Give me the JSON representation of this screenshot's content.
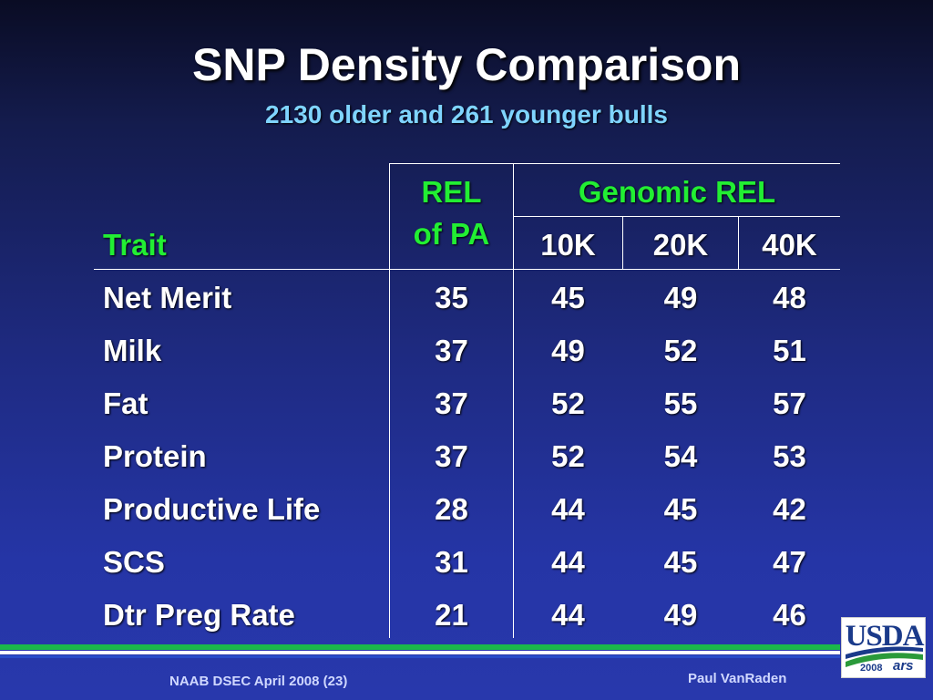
{
  "title": "SNP Density Comparison",
  "subtitle": "2130 older and 261 younger bulls",
  "table": {
    "header": {
      "trait": "Trait",
      "rel_pa_line1": "REL",
      "rel_pa_line2": "of PA",
      "genomic": "Genomic REL",
      "k10": "10K",
      "k20": "20K",
      "k40": "40K"
    },
    "rows": [
      {
        "trait": "Net Merit",
        "rel_pa": "35",
        "k10": "45",
        "k20": "49",
        "k40": "48"
      },
      {
        "trait": "Milk",
        "rel_pa": "37",
        "k10": "49",
        "k20": "52",
        "k40": "51"
      },
      {
        "trait": "Fat",
        "rel_pa": "37",
        "k10": "52",
        "k20": "55",
        "k40": "57"
      },
      {
        "trait": "Protein",
        "rel_pa": "37",
        "k10": "52",
        "k20": "54",
        "k40": "53"
      },
      {
        "trait": "Productive Life",
        "rel_pa": "28",
        "k10": "44",
        "k20": "45",
        "k40": "42"
      },
      {
        "trait": "SCS",
        "rel_pa": "31",
        "k10": "44",
        "k20": "45",
        "k40": "47"
      },
      {
        "trait": "Dtr Preg Rate",
        "rel_pa": "21",
        "k10": "44",
        "k20": "49",
        "k40": "46"
      }
    ]
  },
  "footer": {
    "left": "NAAB DSEC April 2008 (23)",
    "right": "Paul VanRaden"
  },
  "logo": {
    "text": "USDA",
    "year": "2008",
    "ars": "ars"
  },
  "colors": {
    "header_green": "#22ee33",
    "subtitle_blue": "#7fd4ff"
  }
}
